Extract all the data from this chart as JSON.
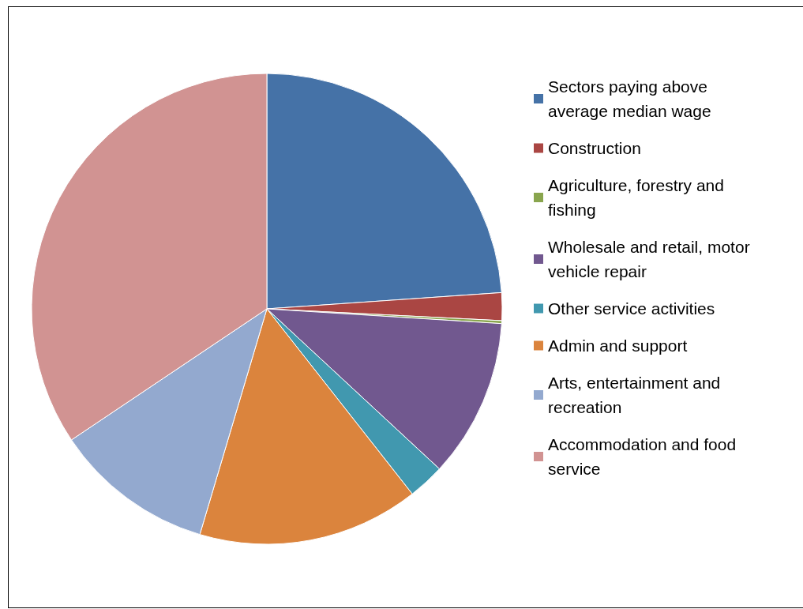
{
  "chart_data": {
    "type": "pie",
    "categories": [
      "Sectors paying above average median wage",
      "Construction",
      "Agriculture, forestry and fishing",
      "Wholesale and retail, motor vehicle repair",
      "Other service activities",
      "Admin and support",
      "Arts, entertainment and recreation",
      "Accommodation and food service"
    ],
    "values": [
      23.9,
      1.9,
      0.2,
      10.9,
      2.5,
      15.2,
      11.0,
      34.4
    ],
    "colors": [
      "#4572a7",
      "#aa4643",
      "#89a54e",
      "#71588f",
      "#4198af",
      "#db843d",
      "#93a9cf",
      "#d19392"
    ],
    "legend": "right"
  }
}
